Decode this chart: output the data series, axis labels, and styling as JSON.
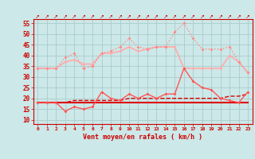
{
  "x": [
    0,
    1,
    2,
    3,
    4,
    5,
    6,
    7,
    8,
    9,
    10,
    11,
    12,
    13,
    14,
    15,
    16,
    17,
    18,
    19,
    20,
    21,
    22,
    23
  ],
  "line_flat1": [
    18,
    18,
    18,
    18,
    18,
    18,
    18,
    18,
    18,
    18,
    18,
    18,
    18,
    18,
    18,
    18,
    18,
    18,
    18,
    18,
    18,
    18,
    18,
    18
  ],
  "line_flat2": [
    18,
    18,
    18,
    18,
    19,
    19,
    19,
    19,
    19,
    19,
    20,
    20,
    20,
    20,
    20,
    20,
    20,
    20,
    20,
    20,
    20,
    21,
    21,
    22
  ],
  "line_gust_low": [
    18,
    18,
    18,
    14,
    16,
    15,
    16,
    23,
    20,
    19,
    22,
    20,
    22,
    20,
    22,
    22,
    34,
    28,
    25,
    24,
    20,
    19,
    18,
    23
  ],
  "line_avg_upper": [
    34,
    34,
    34,
    37,
    38,
    36,
    36,
    41,
    41,
    42,
    44,
    42,
    43,
    44,
    44,
    44,
    34,
    34,
    34,
    34,
    34,
    40,
    37,
    32
  ],
  "line_gust_upper": [
    34,
    34,
    34,
    39,
    41,
    34,
    35,
    41,
    42,
    44,
    48,
    44,
    43,
    44,
    44,
    51,
    55,
    48,
    43,
    43,
    43,
    44,
    37,
    32
  ],
  "color_dark_red": "#dd0000",
  "color_med_red": "#ff5555",
  "color_light_pink": "#ffaaaa",
  "color_med_pink": "#ff8888",
  "background": "#cce8e8",
  "grid_color": "#aacccc",
  "xlabel": "Vent moyen/en rafales ( km/h )",
  "ylim": [
    8,
    57
  ],
  "yticks": [
    10,
    15,
    20,
    25,
    30,
    35,
    40,
    45,
    50,
    55
  ]
}
